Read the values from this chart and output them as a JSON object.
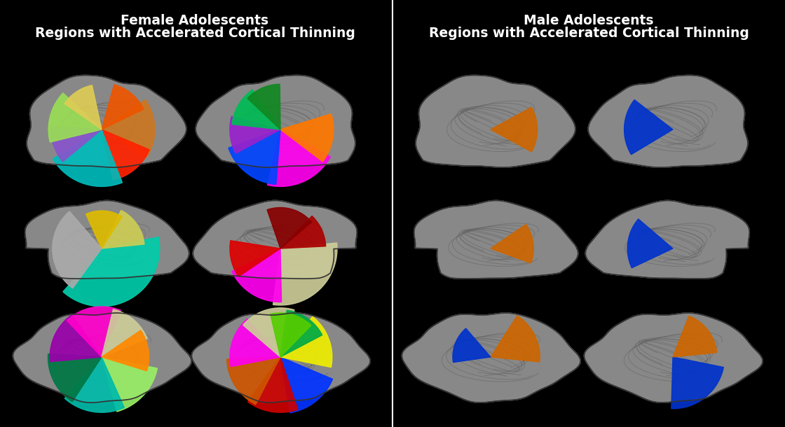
{
  "background_color": "#000000",
  "left_title_line1": "Female Adolescents",
  "left_title_line2": "Regions with Accelerated Cortical Thinning",
  "right_title_line1": "Male Adolescents",
  "right_title_line2": "Regions with Accelerated Cortical Thinning",
  "title_color": "#ffffff",
  "title_fontsize": 13.5,
  "divider_color": "#ffffff",
  "fig_width": 11.2,
  "fig_height": 6.1,
  "dpi": 100,
  "brain_base_color": "#888888",
  "brain_shadow_color": "#555555",
  "brain_highlight_color": "#aaaaaa"
}
